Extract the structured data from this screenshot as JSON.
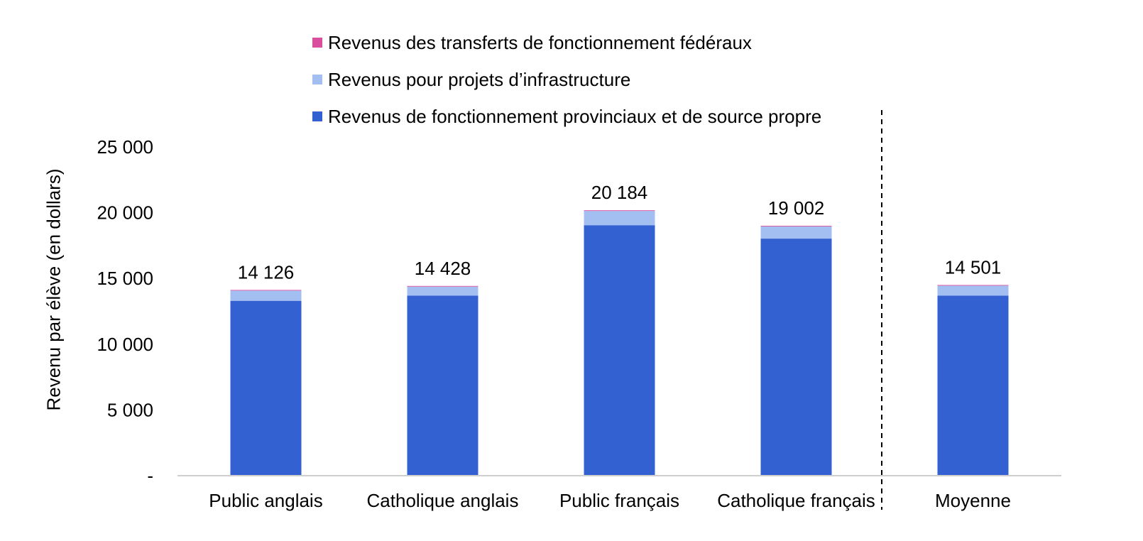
{
  "chart_data": {
    "type": "bar",
    "stacked": true,
    "categories": [
      "Public anglais",
      "Catholique anglais",
      "Public français",
      "Catholique français",
      "Moyenne"
    ],
    "series": [
      {
        "name": "Revenus de fonctionnement provinciaux et de source propre",
        "color": "#3461d1",
        "values": [
          13300,
          13700,
          19050,
          18030,
          13700
        ]
      },
      {
        "name": "Revenus pour projets d’infrastructure",
        "color": "#a3bff2",
        "values": [
          776,
          678,
          1084,
          922,
          751
        ]
      },
      {
        "name": "Revenus des transferts de fonctionnement fédéraux",
        "color": "#d94f9e",
        "values": [
          50,
          50,
          50,
          50,
          50
        ]
      }
    ],
    "totals": [
      14126,
      14428,
      20184,
      19002,
      14501
    ],
    "total_labels": [
      "14 126",
      "14 428",
      "20 184",
      "19 002",
      "14 501"
    ],
    "ylabel": "Revenu par élève (en dollars)",
    "ylim": [
      0,
      25000
    ],
    "yticks": [
      0,
      5000,
      10000,
      15000,
      20000,
      25000
    ],
    "ytick_labels": [
      "-",
      "5 000",
      "10 000",
      "15 000",
      "20 000",
      "25 000"
    ],
    "legend": {
      "placement": "top-center",
      "order": [
        2,
        1,
        0
      ]
    },
    "grid": false,
    "separator_before_category": "Moyenne"
  }
}
